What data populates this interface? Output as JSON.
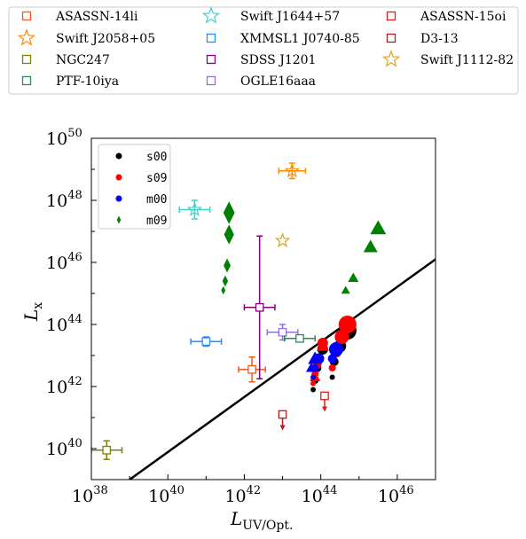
{
  "chart_data": {
    "type": "scatter",
    "x_label": {
      "main": "L",
      "sub": "UV/Opt."
    },
    "y_label": {
      "main": "L",
      "sub": "x"
    },
    "xlog_range": [
      38,
      47
    ],
    "ylog_range": [
      39,
      50
    ],
    "x_ticks": [
      {
        "base": "10",
        "exp": "38",
        "v": 38
      },
      {
        "base": "10",
        "exp": "40",
        "v": 40
      },
      {
        "base": "10",
        "exp": "42",
        "v": 42
      },
      {
        "base": "10",
        "exp": "44",
        "v": 44
      },
      {
        "base": "10",
        "exp": "46",
        "v": 46
      }
    ],
    "y_ticks": [
      {
        "base": "10",
        "exp": "40",
        "v": 40
      },
      {
        "base": "10",
        "exp": "42",
        "v": 42
      },
      {
        "base": "10",
        "exp": "44",
        "v": 44
      },
      {
        "base": "10",
        "exp": "46",
        "v": 46
      },
      {
        "base": "10",
        "exp": "48",
        "v": 48
      },
      {
        "base": "10",
        "exp": "50",
        "v": 50
      }
    ],
    "fit_line": {
      "from": [
        39.0,
        39.0
      ],
      "to": [
        47.0,
        46.1
      ],
      "color": "#000000"
    },
    "top_legend": [
      {
        "name": "ASASSN-14li",
        "marker": "square",
        "color": "#f05a1e"
      },
      {
        "name": "Swift J1644+57",
        "marker": "star",
        "color": "#40d0d0"
      },
      {
        "name": "ASASSN-15oi",
        "marker": "square",
        "color": "#e01e1e"
      },
      {
        "name": "Swift J2058+05",
        "marker": "star",
        "color": "#ff8c00"
      },
      {
        "name": "XMMSL1 J0740-85",
        "marker": "square",
        "color": "#1e90ff"
      },
      {
        "name": "D3-13",
        "marker": "square",
        "color": "#b01e1e"
      },
      {
        "name": "NGC247",
        "marker": "square",
        "color": "#808000"
      },
      {
        "name": "SDSS J1201",
        "marker": "square",
        "color": "#800080"
      },
      {
        "name": "Swift J1112-82",
        "marker": "star",
        "color": "#daa520"
      },
      {
        "name": "PTF-10iya",
        "marker": "square",
        "color": "#2e8b57"
      },
      {
        "name": "OGLE16aaa",
        "marker": "square",
        "color": "#9370db"
      }
    ],
    "inner_legend": [
      {
        "name": "s00",
        "marker": "circle",
        "color": "#000000"
      },
      {
        "name": "s09",
        "marker": "circle",
        "color": "#ff0000"
      },
      {
        "name": "m00",
        "marker": "circle",
        "color": "#0000ff"
      },
      {
        "name": "m09",
        "marker": "diamond",
        "color": "#008000"
      }
    ],
    "observed": [
      {
        "name": "ASASSN-14li",
        "x": 42.2,
        "y": 42.55,
        "xerr": 0.35,
        "yerr": 0.4,
        "color": "#f05a1e",
        "marker": "square"
      },
      {
        "name": "Swift J2058+05",
        "x": 43.25,
        "y": 48.95,
        "xerr": 0.35,
        "yerr": 0.25,
        "color": "#ff8c00",
        "marker": "star"
      },
      {
        "name": "NGC247",
        "x": 38.4,
        "y": 39.95,
        "xerr": 0.4,
        "yerr": 0.3,
        "color": "#808000",
        "marker": "square"
      },
      {
        "name": "Swift J1644+57",
        "x": 40.7,
        "y": 47.7,
        "xerr": 0.4,
        "yerr": 0.3,
        "color": "#40d0d0",
        "marker": "star"
      },
      {
        "name": "XMMSL1 J0740-85",
        "x": 41.0,
        "y": 43.45,
        "xerr": 0.4,
        "yerr": 0.15,
        "color": "#1e90ff",
        "marker": "square"
      },
      {
        "name": "SDSS J1201",
        "x": 42.4,
        "y": 44.55,
        "xerr": 0.4,
        "yerr": 2.3,
        "color": "#800080",
        "marker": "square"
      },
      {
        "name": "OGLE16aaa",
        "x": 43.0,
        "y": 43.75,
        "xerr": 0.4,
        "yerr": 0.25,
        "color": "#9370db",
        "marker": "square"
      },
      {
        "name": "PTF-10iya",
        "x": 43.45,
        "y": 43.55,
        "xerr": 0.4,
        "yerr": 0.1,
        "color": "#2e8b57",
        "marker": "square"
      },
      {
        "name": "ASASSN-15oi",
        "x": 44.1,
        "y": 41.7,
        "upper_limit": true,
        "color": "#e01e1e",
        "marker": "square"
      },
      {
        "name": "D3-13",
        "x": 43.0,
        "y": 41.1,
        "upper_limit": true,
        "color": "#b01e1e",
        "marker": "square"
      },
      {
        "name": "Swift J1112-82",
        "x": 43.0,
        "y": 46.7,
        "color": "#daa520",
        "marker": "star"
      }
    ],
    "model_s00": {
      "color": "#000000",
      "points": [
        [
          43.8,
          41.9,
          3
        ],
        [
          43.85,
          42.2,
          4
        ],
        [
          43.9,
          42.6,
          5
        ],
        [
          44.05,
          43.2,
          6
        ],
        [
          44.3,
          42.3,
          3
        ],
        [
          44.35,
          42.8,
          5
        ],
        [
          44.5,
          43.3,
          7
        ],
        [
          44.7,
          43.8,
          10
        ]
      ]
    },
    "model_s09": {
      "color": "#ff0000",
      "points": [
        [
          43.8,
          42.1,
          3
        ],
        [
          43.85,
          42.4,
          4
        ],
        [
          43.9,
          42.7,
          5
        ],
        [
          44.05,
          43.4,
          6
        ],
        [
          44.3,
          42.6,
          4
        ],
        [
          44.4,
          43.1,
          6
        ],
        [
          44.55,
          43.6,
          8
        ],
        [
          44.7,
          44.0,
          10
        ]
      ]
    },
    "model_m00": {
      "color": "#0000ff",
      "points": [
        [
          43.8,
          42.3,
          3
        ],
        [
          43.85,
          42.6,
          4
        ],
        [
          43.95,
          42.9,
          6
        ],
        [
          44.3,
          42.9,
          5
        ],
        [
          44.4,
          43.2,
          8
        ]
      ]
    },
    "m09_diamonds": {
      "color": "#008000",
      "points": [
        [
          41.45,
          45.1,
          3
        ],
        [
          41.5,
          45.4,
          4
        ],
        [
          41.55,
          45.9,
          5
        ],
        [
          41.6,
          46.9,
          7
        ],
        [
          41.6,
          47.6,
          8
        ]
      ]
    },
    "triangles_red": {
      "color": "#ff0000",
      "points": [
        [
          43.85,
          42.3,
          6
        ],
        [
          44.05,
          43.3,
          7
        ]
      ]
    },
    "triangles_blue": {
      "color": "#0000ff",
      "points": [
        [
          43.75,
          42.6,
          6
        ],
        [
          43.85,
          42.9,
          8
        ]
      ]
    },
    "triangles_green": {
      "color": "#008000",
      "points": [
        [
          44.65,
          45.1,
          5
        ],
        [
          44.85,
          45.5,
          6
        ],
        [
          45.3,
          46.5,
          8
        ],
        [
          45.5,
          47.1,
          9
        ]
      ]
    }
  }
}
